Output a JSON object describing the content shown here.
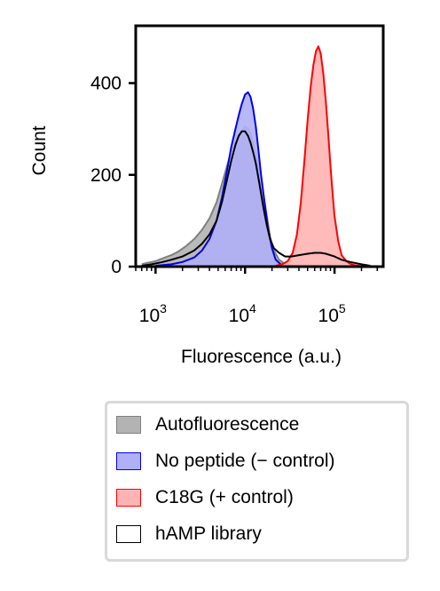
{
  "chart_data": {
    "type": "area",
    "xlabel": "Fluorescence (a.u.)",
    "ylabel": "Count",
    "xscale": "log",
    "xlim": [
      600,
      350000
    ],
    "ylim": [
      0,
      525
    ],
    "yticks": [
      {
        "value": 0,
        "label": "0"
      },
      {
        "value": 200,
        "label": "200"
      },
      {
        "value": 400,
        "label": "400"
      }
    ],
    "xticks": [
      {
        "value": 1000,
        "base": "10",
        "exp": "3"
      },
      {
        "value": 10000,
        "base": "10",
        "exp": "4"
      },
      {
        "value": 100000,
        "base": "10",
        "exp": "5"
      }
    ],
    "legend_position": "below",
    "series": [
      {
        "name": "Autofluorescence",
        "fill": "#b3b3b3",
        "stroke": "#808080",
        "filled": true,
        "x": [
          700,
          800,
          900,
          1000,
          1200,
          1500,
          1800,
          2200,
          2700,
          3300,
          4000,
          4800,
          5500,
          6300,
          7000,
          7800,
          8500,
          9200,
          10000,
          10800,
          11500,
          12300,
          13200,
          14500,
          16000,
          17500,
          19000,
          21000,
          24000,
          28000,
          33000,
          40000
        ],
        "values": [
          5,
          8,
          10,
          12,
          18,
          25,
          33,
          45,
          60,
          80,
          105,
          140,
          180,
          220,
          250,
          270,
          285,
          295,
          305,
          300,
          290,
          270,
          245,
          205,
          160,
          110,
          65,
          35,
          15,
          6,
          2,
          0
        ]
      },
      {
        "name": "No peptide (− control)",
        "fill": "#b0b0f8",
        "stroke": "#0000ee",
        "filled": true,
        "x": [
          1000,
          1500,
          2000,
          2700,
          3300,
          4000,
          4800,
          5500,
          6300,
          7000,
          7800,
          8500,
          9200,
          10000,
          10800,
          11500,
          12300,
          13200,
          14000,
          15000,
          16500,
          18000,
          20000,
          22000,
          25000,
          30000,
          40000
        ],
        "values": [
          2,
          5,
          10,
          20,
          35,
          60,
          100,
          150,
          210,
          260,
          300,
          330,
          355,
          375,
          380,
          370,
          345,
          305,
          260,
          205,
          140,
          85,
          40,
          15,
          5,
          1,
          0
        ]
      },
      {
        "name": "C18G (+ control)",
        "fill": "#ffb3b3",
        "stroke": "#ff0000",
        "filled": true,
        "x": [
          22000,
          26000,
          30000,
          34000,
          38000,
          42000,
          46000,
          50000,
          54000,
          58000,
          62000,
          66000,
          70000,
          75000,
          80000,
          85000,
          90000,
          95000,
          100000,
          110000,
          120000,
          135000,
          150000,
          170000,
          200000,
          250000
        ],
        "values": [
          2,
          5,
          12,
          30,
          70,
          140,
          230,
          320,
          390,
          440,
          470,
          480,
          465,
          420,
          360,
          290,
          220,
          160,
          110,
          55,
          25,
          12,
          6,
          3,
          1,
          0
        ]
      },
      {
        "name": "hAMP library",
        "fill": "none",
        "stroke": "#000000",
        "filled": false,
        "x": [
          700,
          900,
          1200,
          1500,
          2000,
          2700,
          3300,
          4000,
          4800,
          5500,
          6300,
          7000,
          7800,
          8500,
          9200,
          10000,
          10800,
          11500,
          12300,
          13200,
          14500,
          16000,
          17500,
          19000,
          21000,
          24000,
          28000,
          33000,
          40000,
          50000,
          60000,
          70000,
          80000,
          100000,
          120000,
          150000,
          200000,
          250000
        ],
        "values": [
          2,
          5,
          10,
          15,
          22,
          35,
          50,
          70,
          100,
          140,
          190,
          230,
          265,
          285,
          295,
          295,
          285,
          270,
          250,
          225,
          180,
          130,
          90,
          60,
          40,
          30,
          22,
          22,
          25,
          28,
          30,
          30,
          28,
          22,
          15,
          10,
          5,
          2
        ]
      }
    ]
  }
}
